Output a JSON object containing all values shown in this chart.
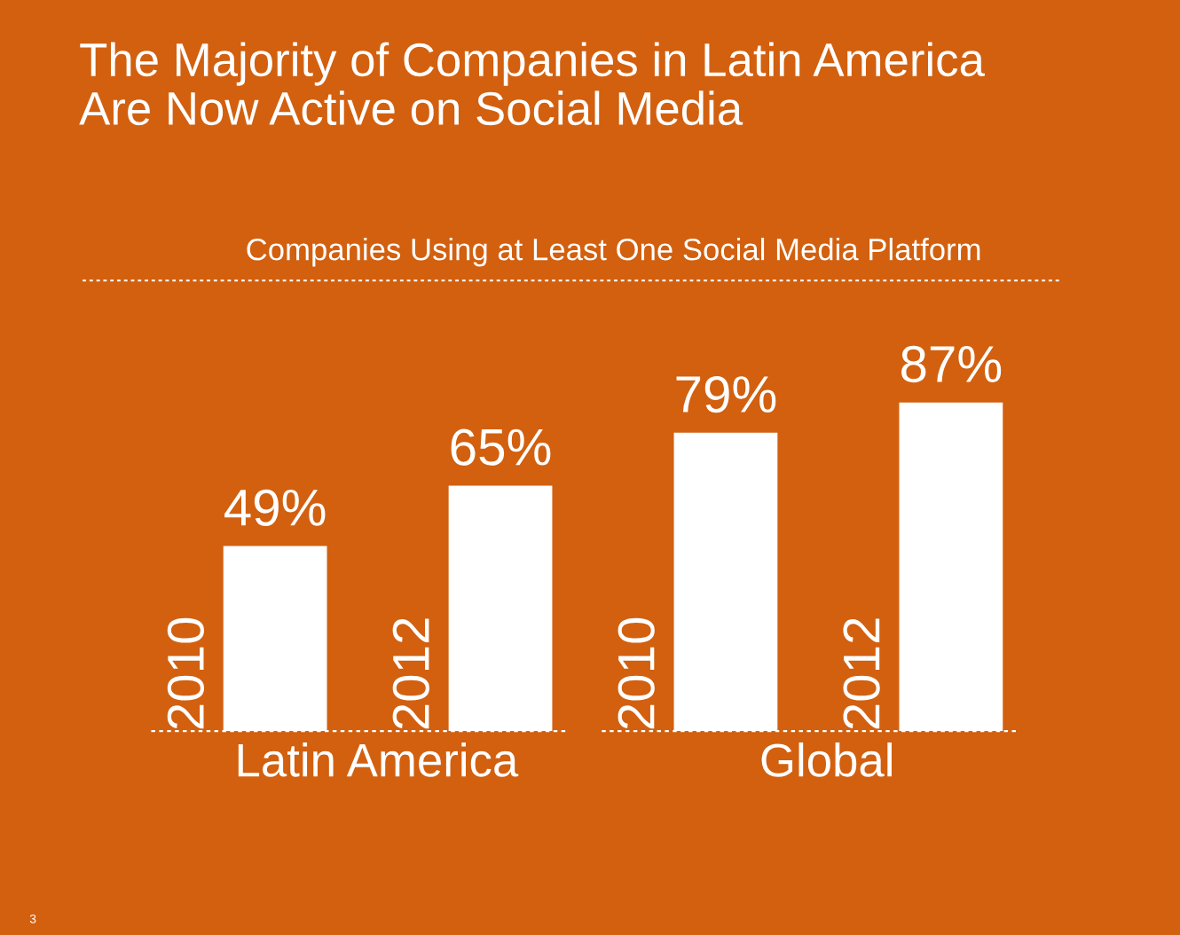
{
  "chart_data": {
    "type": "bar",
    "title": "The Majority of Companies in Latin America\nAre Now Active on Social Media",
    "subtitle": "Companies Using at Least One Social Media Platform",
    "categories": [
      "2010",
      "2012",
      "2010",
      "2012"
    ],
    "values": [
      49,
      65,
      79,
      87
    ],
    "color": "#ffffff",
    "value_labels": [
      "49%",
      "65%",
      "79%",
      "87%"
    ],
    "annotations": [
      "Latin America",
      "Global",
      "3"
    ]
  }
}
